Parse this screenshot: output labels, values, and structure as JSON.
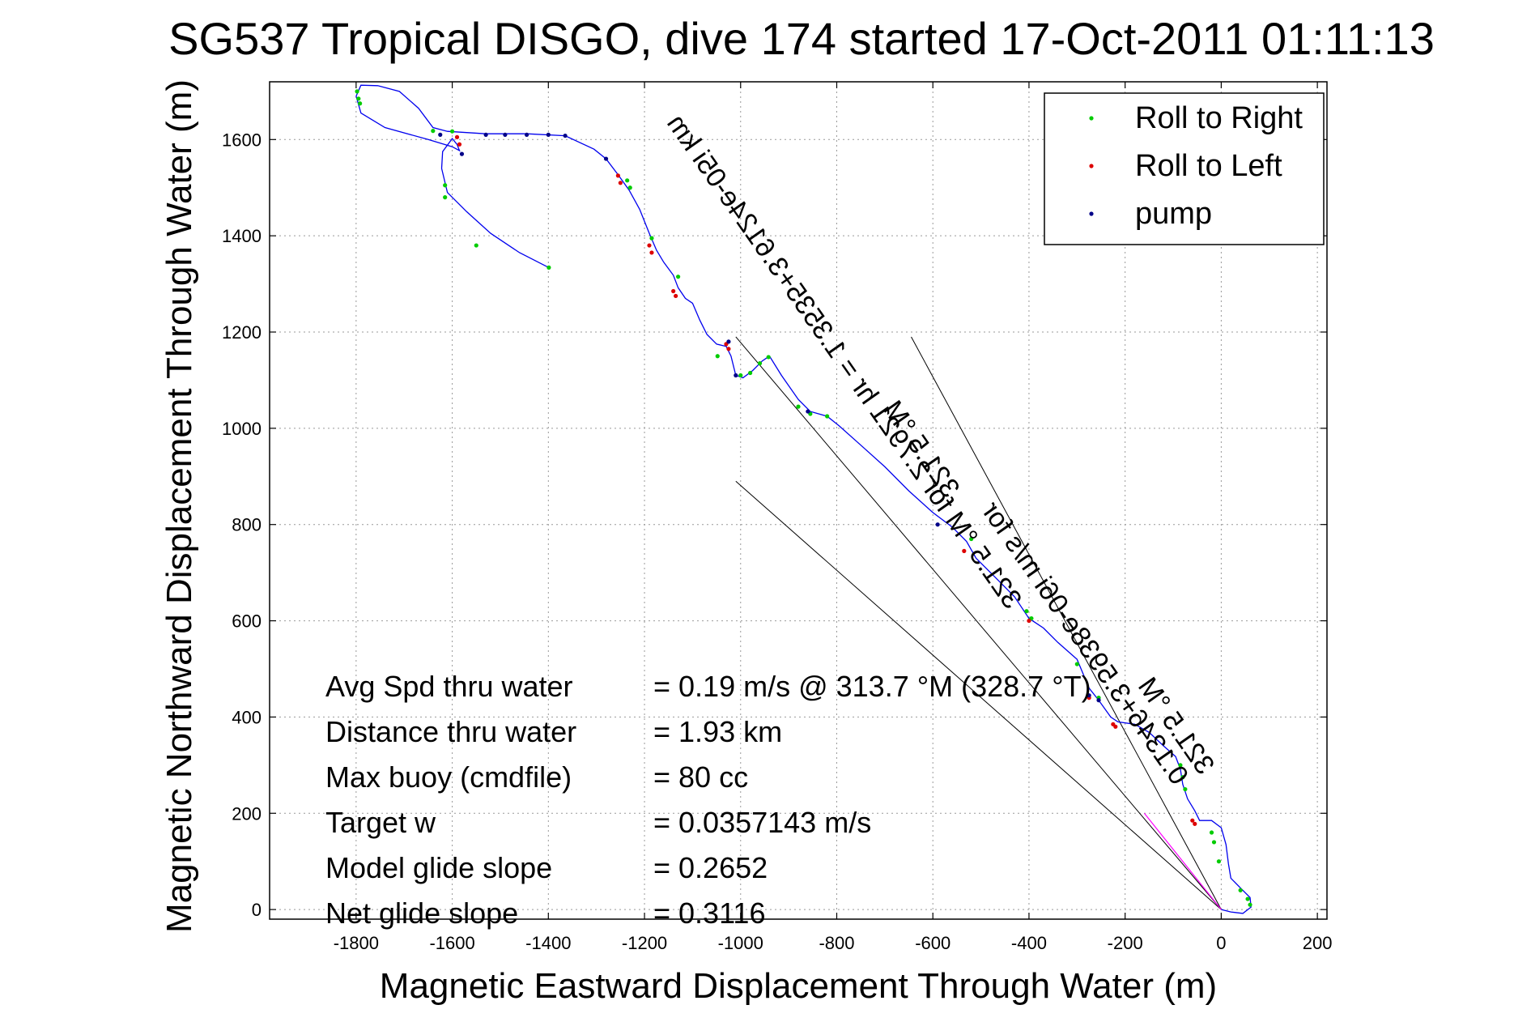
{
  "chart_data": {
    "type": "line",
    "title": "SG537 Tropical DISGO, dive 174 started 17-Oct-2011 01:11:13",
    "xlabel": "Magnetic Eastward Displacement Through Water (m)",
    "ylabel": "Magnetic Northward Displacement Through Water (m)",
    "xlim": [
      -1980,
      220
    ],
    "ylim": [
      -20,
      1720
    ],
    "x_ticks": [
      -1800,
      -1600,
      -1400,
      -1200,
      -1000,
      -800,
      -600,
      -400,
      -200,
      0,
      200
    ],
    "y_ticks": [
      0,
      200,
      400,
      600,
      800,
      1000,
      1200,
      1400,
      1600
    ],
    "x_tick_labels": [
      "-1800",
      "-1600",
      "-1400",
      "-1200",
      "-1000",
      "-800",
      "-600",
      "-400",
      "-200",
      "0",
      "200"
    ],
    "y_tick_labels": [
      "0",
      "200",
      "400",
      "600",
      "800",
      "1000",
      "1200",
      "1400",
      "1600"
    ],
    "grid": true,
    "legend_position": "top-right",
    "series": [
      {
        "name": "Roll to Right",
        "color": "#00cc00",
        "points": [
          [
            -1798,
            1700
          ],
          [
            -1795,
            1685
          ],
          [
            -1792,
            1675
          ],
          [
            -1640,
            1618
          ],
          [
            -1600,
            1617
          ],
          [
            -1615,
            1505
          ],
          [
            -1615,
            1480
          ],
          [
            -1550,
            1380
          ],
          [
            -1399,
            1334
          ],
          [
            -1236,
            1515
          ],
          [
            -1230,
            1500
          ],
          [
            -1185,
            1395
          ],
          [
            -1130,
            1315
          ],
          [
            -1048,
            1150
          ],
          [
            -1000,
            1110
          ],
          [
            -980,
            1115
          ],
          [
            -960,
            1135
          ],
          [
            -942,
            1148
          ],
          [
            -880,
            1045
          ],
          [
            -855,
            1030
          ],
          [
            -820,
            1025
          ],
          [
            -520,
            770
          ],
          [
            -405,
            620
          ],
          [
            -395,
            605
          ],
          [
            -300,
            510
          ],
          [
            -255,
            440
          ],
          [
            -85,
            300
          ],
          [
            -80,
            275
          ],
          [
            -75,
            250
          ],
          [
            -20,
            160
          ],
          [
            -15,
            140
          ],
          [
            -5,
            100
          ],
          [
            40,
            40
          ],
          [
            55,
            22
          ],
          [
            60,
            10
          ]
        ]
      },
      {
        "name": "Roll to Left",
        "color": "#dd0000",
        "points": [
          [
            -1590,
            1605
          ],
          [
            -1585,
            1590
          ],
          [
            -1255,
            1525
          ],
          [
            -1250,
            1510
          ],
          [
            -1190,
            1380
          ],
          [
            -1185,
            1365
          ],
          [
            -1140,
            1285
          ],
          [
            -1135,
            1275
          ],
          [
            -1030,
            1175
          ],
          [
            -1025,
            1165
          ],
          [
            -535,
            745
          ],
          [
            -400,
            600
          ],
          [
            -275,
            440
          ],
          [
            -225,
            385
          ],
          [
            -220,
            380
          ],
          [
            -60,
            185
          ],
          [
            -55,
            178
          ]
        ]
      },
      {
        "name": "pump",
        "color": "#000088",
        "points": [
          [
            -1580,
            1570
          ],
          [
            -1625,
            1610
          ],
          [
            -1530,
            1610
          ],
          [
            -1490,
            1610
          ],
          [
            -1445,
            1610
          ],
          [
            -1400,
            1610
          ],
          [
            -1365,
            1608
          ],
          [
            -1280,
            1560
          ],
          [
            -1025,
            1180
          ],
          [
            -1010,
            1110
          ],
          [
            -860,
            1035
          ],
          [
            -590,
            800
          ],
          [
            -275,
            445
          ],
          [
            -255,
            435
          ]
        ]
      }
    ],
    "track": {
      "color": "#0000ee",
      "points": [
        [
          -1399,
          1334
        ],
        [
          -1460,
          1365
        ],
        [
          -1520,
          1405
        ],
        [
          -1570,
          1450
        ],
        [
          -1610,
          1490
        ],
        [
          -1622,
          1540
        ],
        [
          -1620,
          1575
        ],
        [
          -1600,
          1602
        ],
        [
          -1590,
          1590
        ],
        [
          -1585,
          1577
        ],
        [
          -1600,
          1585
        ],
        [
          -1650,
          1600
        ],
        [
          -1740,
          1625
        ],
        [
          -1790,
          1655
        ],
        [
          -1800,
          1690
        ],
        [
          -1790,
          1713
        ],
        [
          -1755,
          1712
        ],
        [
          -1710,
          1700
        ],
        [
          -1670,
          1665
        ],
        [
          -1640,
          1625
        ],
        [
          -1610,
          1617
        ],
        [
          -1530,
          1612
        ],
        [
          -1445,
          1612
        ],
        [
          -1365,
          1608
        ],
        [
          -1305,
          1580
        ],
        [
          -1280,
          1560
        ],
        [
          -1255,
          1527
        ],
        [
          -1232,
          1495
        ],
        [
          -1210,
          1455
        ],
        [
          -1190,
          1405
        ],
        [
          -1175,
          1370
        ],
        [
          -1160,
          1345
        ],
        [
          -1140,
          1318
        ],
        [
          -1130,
          1292
        ],
        [
          -1115,
          1270
        ],
        [
          -1100,
          1260
        ],
        [
          -1085,
          1225
        ],
        [
          -1070,
          1195
        ],
        [
          -1050,
          1175
        ],
        [
          -1030,
          1170
        ],
        [
          -1020,
          1150
        ],
        [
          -1010,
          1110
        ],
        [
          -995,
          1105
        ],
        [
          -975,
          1120
        ],
        [
          -955,
          1140
        ],
        [
          -940,
          1150
        ],
        [
          -915,
          1110
        ],
        [
          -880,
          1060
        ],
        [
          -855,
          1035
        ],
        [
          -820,
          1025
        ],
        [
          -795,
          1005
        ],
        [
          -750,
          965
        ],
        [
          -700,
          920
        ],
        [
          -650,
          870
        ],
        [
          -600,
          825
        ],
        [
          -560,
          795
        ],
        [
          -530,
          765
        ],
        [
          -510,
          730
        ],
        [
          -470,
          690
        ],
        [
          -430,
          650
        ],
        [
          -400,
          605
        ],
        [
          -370,
          585
        ],
        [
          -340,
          555
        ],
        [
          -300,
          520
        ],
        [
          -275,
          460
        ],
        [
          -255,
          435
        ],
        [
          -230,
          400
        ],
        [
          -215,
          390
        ],
        [
          -180,
          385
        ],
        [
          -150,
          368
        ],
        [
          -120,
          340
        ],
        [
          -95,
          318
        ],
        [
          -85,
          292
        ],
        [
          -80,
          260
        ],
        [
          -70,
          230
        ],
        [
          -55,
          205
        ],
        [
          -45,
          185
        ],
        [
          -20,
          185
        ],
        [
          0,
          170
        ],
        [
          10,
          135
        ],
        [
          15,
          95
        ],
        [
          20,
          65
        ],
        [
          40,
          45
        ],
        [
          60,
          25
        ],
        [
          62,
          5
        ],
        [
          45,
          -8
        ],
        [
          20,
          -5
        ],
        [
          0,
          0
        ]
      ]
    },
    "rays": {
      "color": "#000000",
      "lines": [
        [
          [
            0,
            0
          ],
          [
            -645,
            1190
          ]
        ],
        [
          [
            0,
            0
          ],
          [
            -1010,
            890
          ]
        ],
        [
          [
            0,
            0
          ],
          [
            -1010,
            1190
          ]
        ]
      ]
    },
    "rays_magenta": {
      "color": "#ff00ff",
      "lines": [
        [
          [
            0,
            0
          ],
          [
            -160,
            200
          ]
        ]
      ]
    },
    "stats": [
      {
        "label": "Avg Spd thru water",
        "value": "=  0.19 m/s @ 313.7 °M (328.7 °T)"
      },
      {
        "label": "Distance thru water",
        "value": "=  1.93 km"
      },
      {
        "label": "Max buoy (cmdfile)",
        "value": "= 80 cc"
      },
      {
        "label": "Target w",
        "value": "= 0.0357143 m/s"
      },
      {
        "label": "Model glide slope",
        "value": "= 0.2652"
      },
      {
        "label": "Net glide slope",
        "value": "= 0.3116"
      }
    ],
    "annotations": [
      {
        "text": "321.5 °M for 2.7921 hr = 1.3535+3.6124e-05i km",
        "anchor": [
          -1155,
          1635
        ]
      },
      {
        "text": "321.5 °M",
        "anchor": [
          -705,
          1040
        ]
      },
      {
        "text": "321.5 °M",
        "anchor": [
          -175,
          465
        ]
      },
      {
        "text": "0.1346+3.5938e-06i m/s for",
        "anchor": [
          -500,
          830
        ]
      }
    ]
  }
}
